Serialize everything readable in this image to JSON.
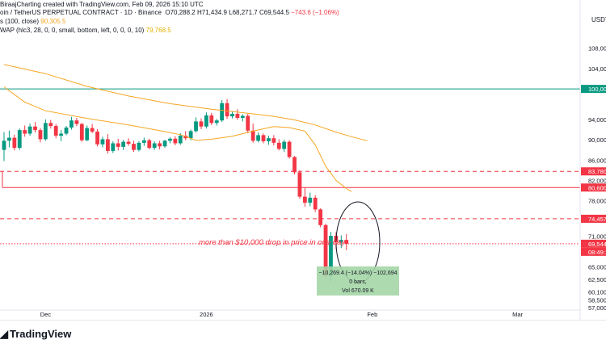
{
  "header": {
    "credit": "BiraajCharting created with TradingView.com, Feb 09, 2026 15:10 UTC",
    "symbol": "oin / TetherUS PERPETUAL CONTRACT · 1D · Binance",
    "ohlc": {
      "o_label": "O",
      "o": "70,288.2",
      "h_label": "H",
      "h": "71,434.9",
      "l_label": "L",
      "l": "68,271.7",
      "c_label": "C",
      "c": "69,544.5",
      "change": "−743.6 (−1.06%)"
    },
    "ma_label": "s (100, close)",
    "ma_value": "90,305.5",
    "vwap_label": "WAP (hlc3, 28, 0, 0, small, bottom, left, 0, 0, 0, 10)",
    "vwap_value": "79,768.5",
    "currency": "USDT"
  },
  "footer": {
    "brand": "TradingView"
  },
  "colors": {
    "up": "#089981",
    "down": "#f23645",
    "ma": "#f5a623",
    "support_green": "#089981",
    "level_red": "#f23645",
    "bg": "#ffffff"
  },
  "chart_data": {
    "type": "candlestick",
    "symbol": "TetherUS PERPETUAL CONTRACT",
    "interval": "1D",
    "exchange": "Binance",
    "y_ticks": [
      "104,000",
      "100,000",
      "94,000",
      "90,000",
      "86,000",
      "82,000",
      "78,000",
      "74,457",
      "71,000",
      "65,000",
      "62,500",
      "60,100",
      "58,500",
      "57,000"
    ],
    "y_ticks_right": [
      {
        "label": "108,000",
        "value": 108000
      },
      {
        "label": "104,000",
        "value": 104000
      },
      {
        "label": "94,000",
        "value": 94000
      },
      {
        "label": "90,000",
        "value": 90000
      },
      {
        "label": "86,000",
        "value": 86000
      },
      {
        "label": "82,000",
        "value": 82000
      },
      {
        "label": "78,000",
        "value": 78000
      },
      {
        "label": "71,000",
        "value": 71000
      },
      {
        "label": "65,000",
        "value": 65000
      },
      {
        "label": "62,500",
        "value": 62500
      },
      {
        "label": "60,100",
        "value": 60100
      },
      {
        "label": "58,500",
        "value": 58500
      },
      {
        "label": "57,000",
        "value": 57000
      }
    ],
    "x_ticks": [
      {
        "label": "Dec",
        "index": 8
      },
      {
        "label": "2026",
        "index": 39
      },
      {
        "label": "Feb",
        "index": 71
      },
      {
        "label": "Mar",
        "index": 99
      }
    ],
    "y_range": [
      56500,
      110500
    ],
    "price_levels": [
      {
        "label": "100,000",
        "value": 100000,
        "color": "#089981",
        "style": "solid"
      },
      {
        "label": "83,780",
        "value": 83780,
        "color": "#f23645",
        "style": "dashed"
      },
      {
        "label": "80,600",
        "value": 80600,
        "color": "#f23645",
        "style": "solid"
      },
      {
        "label": "74,457",
        "value": 74457,
        "color": "#f23645",
        "style": "dashed"
      },
      {
        "label": "69,544",
        "value": 69544,
        "color": "#f23645",
        "style": "dotted"
      }
    ],
    "countdown": "08:49:1",
    "candles": [
      [
        88000,
        91500,
        85800,
        89800
      ],
      [
        89800,
        91800,
        88500,
        90400
      ],
      [
        90400,
        91000,
        87900,
        88400
      ],
      [
        88400,
        92200,
        88000,
        91900
      ],
      [
        91900,
        92800,
        90600,
        91200
      ],
      [
        91200,
        93200,
        90800,
        92600
      ],
      [
        92600,
        93500,
        91400,
        91900
      ],
      [
        91900,
        92300,
        89500,
        90100
      ],
      [
        90100,
        94000,
        89800,
        93300
      ],
      [
        93300,
        93900,
        92200,
        92700
      ],
      [
        92700,
        93100,
        90300,
        90800
      ],
      [
        90800,
        91900,
        89700,
        91200
      ],
      [
        91200,
        92700,
        90900,
        92400
      ],
      [
        92400,
        94500,
        92000,
        93800
      ],
      [
        93800,
        94300,
        92700,
        93100
      ],
      [
        93100,
        93300,
        89600,
        89900
      ],
      [
        89900,
        92800,
        89700,
        92300
      ],
      [
        92300,
        93100,
        91300,
        91600
      ],
      [
        91600,
        92100,
        88700,
        89100
      ],
      [
        89100,
        90600,
        88500,
        90100
      ],
      [
        90100,
        91100,
        87300,
        87800
      ],
      [
        87800,
        89700,
        87400,
        89300
      ],
      [
        89300,
        90200,
        87900,
        88600
      ],
      [
        88600,
        90000,
        88000,
        89600
      ],
      [
        89600,
        90300,
        88800,
        89200
      ],
      [
        89200,
        89800,
        87600,
        88000
      ],
      [
        88000,
        89700,
        87700,
        89400
      ],
      [
        89400,
        90400,
        88800,
        89900
      ],
      [
        89900,
        90200,
        88100,
        88400
      ],
      [
        88400,
        89700,
        88000,
        89300
      ],
      [
        89300,
        89800,
        88100,
        88700
      ],
      [
        88700,
        90000,
        88400,
        89800
      ],
      [
        89800,
        90500,
        89300,
        90200
      ],
      [
        90200,
        90700,
        88900,
        89300
      ],
      [
        89300,
        91300,
        89000,
        90800
      ],
      [
        90800,
        91700,
        89900,
        90300
      ],
      [
        90300,
        92000,
        89900,
        91700
      ],
      [
        91700,
        94400,
        91400,
        93600
      ],
      [
        93600,
        94200,
        92100,
        92600
      ],
      [
        92600,
        95400,
        92200,
        94800
      ],
      [
        94800,
        95300,
        92900,
        93300
      ],
      [
        93300,
        94100,
        92800,
        93800
      ],
      [
        93800,
        97800,
        93500,
        97200
      ],
      [
        97200,
        98000,
        94100,
        94600
      ],
      [
        94600,
        95600,
        94200,
        95100
      ],
      [
        95100,
        96000,
        93900,
        94300
      ],
      [
        94300,
        95000,
        93600,
        94700
      ],
      [
        94700,
        95100,
        91300,
        91800
      ],
      [
        91800,
        93200,
        89400,
        89800
      ],
      [
        89800,
        91400,
        89500,
        90900
      ],
      [
        90900,
        91200,
        89300,
        89700
      ],
      [
        89700,
        90800,
        89000,
        90300
      ],
      [
        90300,
        90900,
        88900,
        89400
      ],
      [
        89400,
        90100,
        87900,
        88200
      ],
      [
        88200,
        90000,
        87600,
        89600
      ],
      [
        89600,
        89900,
        86300,
        86600
      ],
      [
        86600,
        86800,
        83200,
        83600
      ],
      [
        83600,
        84000,
        78400,
        78800
      ],
      [
        78800,
        80600,
        76800,
        77600
      ],
      [
        77600,
        79600,
        76900,
        78600
      ],
      [
        78600,
        79100,
        75800,
        76300
      ],
      [
        76300,
        76500,
        72800,
        73200
      ],
      [
        73200,
        73500,
        62700,
        63200
      ],
      [
        63200,
        71900,
        62100,
        71100
      ],
      [
        71100,
        71800,
        68500,
        69800
      ],
      [
        69800,
        71200,
        68700,
        70300
      ],
      [
        70300,
        71435,
        68272,
        69545
      ]
    ],
    "ma_line": [
      [
        0,
        104800
      ],
      [
        8,
        103000
      ],
      [
        16,
        100500
      ],
      [
        24,
        98600
      ],
      [
        32,
        97100
      ],
      [
        40,
        96000
      ],
      [
        48,
        95100
      ],
      [
        52,
        94600
      ],
      [
        56,
        93900
      ],
      [
        60,
        92900
      ],
      [
        64,
        91500
      ],
      [
        67,
        90600
      ],
      [
        70,
        89800
      ]
    ],
    "vwap_line": [
      [
        0,
        100400
      ],
      [
        4,
        97400
      ],
      [
        8,
        95700
      ],
      [
        16,
        94200
      ],
      [
        24,
        92900
      ],
      [
        30,
        91800
      ],
      [
        34,
        91000
      ],
      [
        37,
        89900
      ],
      [
        40,
        90100
      ],
      [
        44,
        90700
      ],
      [
        48,
        91700
      ],
      [
        52,
        92600
      ],
      [
        55,
        92400
      ],
      [
        58,
        91700
      ],
      [
        60,
        89000
      ],
      [
        62,
        84800
      ],
      [
        64,
        82000
      ],
      [
        66,
        80400
      ],
      [
        67,
        79800
      ]
    ],
    "annotation": {
      "text": "more than $10,000 drop in price in one day",
      "color": "#f23645"
    },
    "measure_box": {
      "line1": "−10,269.4 (−14.04%) −102,694",
      "line2": "0 bars,",
      "line3": "Vol 670.09 K"
    }
  }
}
